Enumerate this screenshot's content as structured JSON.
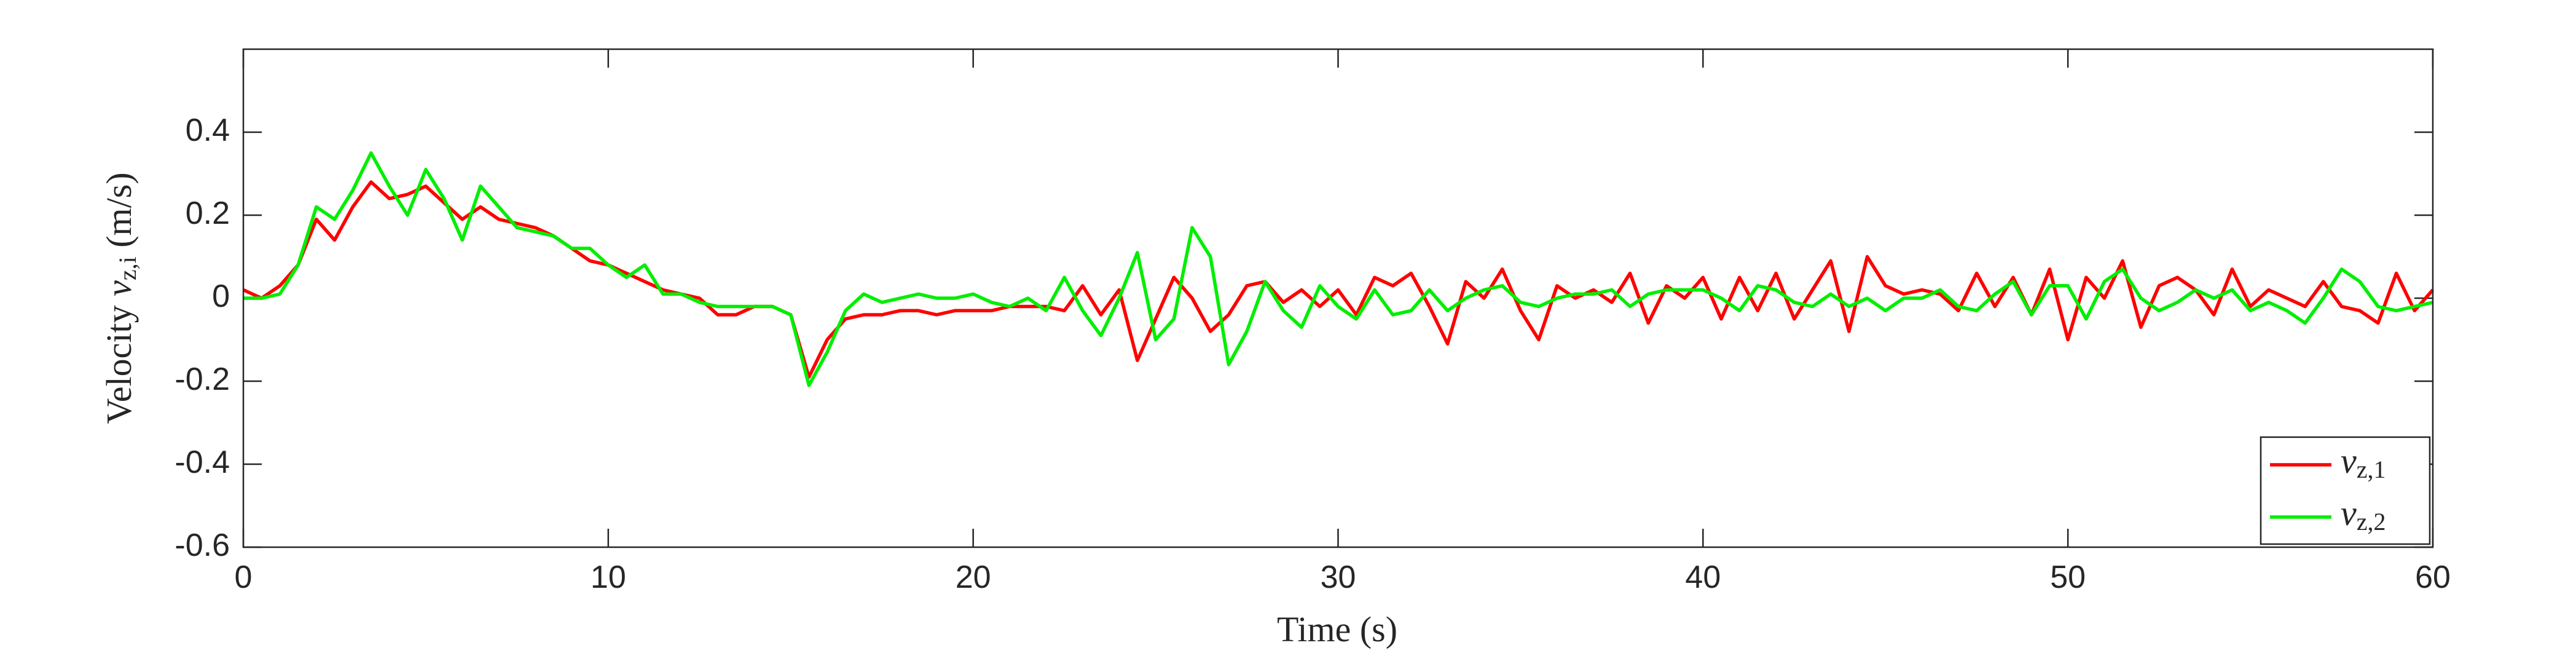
{
  "chart_data": {
    "type": "line",
    "xlabel": "Time (s)",
    "ylabel": "Velocity v_{z,i} (m/s)",
    "xlim": [
      0,
      60
    ],
    "xticks": [
      0,
      10,
      20,
      30,
      40,
      50,
      60
    ],
    "ylim": [
      -0.6,
      0.6
    ],
    "yticks": [
      -0.6,
      -0.4,
      -0.2,
      0,
      0.2,
      0.4
    ],
    "grid": false,
    "legend": "lower right",
    "x": [
      0,
      0.5,
      1,
      1.5,
      2,
      2.5,
      3,
      3.5,
      4,
      4.5,
      5,
      5.5,
      6,
      6.5,
      7,
      7.5,
      8,
      8.5,
      9,
      9.5,
      10,
      10.5,
      11,
      11.5,
      12,
      12.5,
      13,
      13.5,
      14,
      14.5,
      15,
      15.5,
      16,
      16.5,
      17,
      17.5,
      18,
      18.5,
      19,
      19.5,
      20,
      20.5,
      21,
      21.5,
      22,
      22.5,
      23,
      23.5,
      24,
      24.5,
      25,
      25.5,
      26,
      26.5,
      27,
      27.5,
      28,
      28.5,
      29,
      29.5,
      30,
      30.5,
      31,
      31.5,
      32,
      32.5,
      33,
      33.5,
      34,
      34.5,
      35,
      35.5,
      36,
      36.5,
      37,
      37.5,
      38,
      38.5,
      39,
      39.5,
      40,
      40.5,
      41,
      41.5,
      42,
      42.5,
      43,
      43.5,
      44,
      44.5,
      45,
      45.5,
      46,
      46.5,
      47,
      47.5,
      48,
      48.5,
      49,
      49.5,
      50,
      50.5,
      51,
      51.5,
      52,
      52.5,
      53,
      53.5,
      54,
      54.5,
      55,
      55.5,
      56,
      56.5,
      57,
      57.5,
      58,
      58.5,
      59,
      59.5,
      60
    ],
    "series": [
      {
        "name": "v_{z,1}",
        "color": "#ff0000",
        "values": [
          0.02,
          0.0,
          0.03,
          0.08,
          0.19,
          0.14,
          0.22,
          0.28,
          0.24,
          0.25,
          0.27,
          0.23,
          0.19,
          0.22,
          0.19,
          0.18,
          0.17,
          0.15,
          0.12,
          0.09,
          0.08,
          0.06,
          0.04,
          0.02,
          0.01,
          0.0,
          -0.04,
          -0.04,
          -0.02,
          -0.02,
          -0.04,
          -0.19,
          -0.1,
          -0.05,
          -0.04,
          -0.04,
          -0.03,
          -0.03,
          -0.04,
          -0.03,
          -0.03,
          -0.03,
          -0.02,
          -0.02,
          -0.02,
          -0.03,
          0.03,
          -0.04,
          0.02,
          -0.15,
          -0.05,
          0.05,
          0.0,
          -0.08,
          -0.04,
          0.03,
          0.04,
          -0.01,
          0.02,
          -0.02,
          0.02,
          -0.04,
          0.05,
          0.03,
          0.06,
          -0.02,
          -0.11,
          0.04,
          0.0,
          0.07,
          -0.03,
          -0.1,
          0.03,
          0.0,
          0.02,
          -0.01,
          0.06,
          -0.06,
          0.03,
          0.0,
          0.05,
          -0.05,
          0.05,
          -0.03,
          0.06,
          -0.05,
          0.02,
          0.09,
          -0.08,
          0.1,
          0.03,
          0.01,
          0.02,
          0.01,
          -0.03,
          0.06,
          -0.02,
          0.05,
          -0.04,
          0.07,
          -0.1,
          0.05,
          0.0,
          0.09,
          -0.07,
          0.03,
          0.05,
          0.02,
          -0.04,
          0.07,
          -0.02,
          0.02,
          0.0,
          -0.02,
          0.04,
          -0.02,
          -0.03,
          -0.06,
          0.06,
          -0.03,
          0.02
        ]
      },
      {
        "name": "v_{z,2}",
        "color": "#00ee00",
        "values": [
          0.0,
          0.0,
          0.01,
          0.08,
          0.22,
          0.19,
          0.26,
          0.35,
          0.27,
          0.2,
          0.31,
          0.24,
          0.14,
          0.27,
          0.22,
          0.17,
          0.16,
          0.15,
          0.12,
          0.12,
          0.08,
          0.05,
          0.08,
          0.01,
          0.01,
          -0.01,
          -0.02,
          -0.02,
          -0.02,
          -0.02,
          -0.04,
          -0.21,
          -0.13,
          -0.03,
          0.01,
          -0.01,
          0.0,
          0.01,
          0.0,
          0.0,
          0.01,
          -0.01,
          -0.02,
          0.0,
          -0.03,
          0.05,
          -0.03,
          -0.09,
          0.0,
          0.11,
          -0.1,
          -0.05,
          0.17,
          0.1,
          -0.16,
          -0.08,
          0.04,
          -0.03,
          -0.07,
          0.03,
          -0.02,
          -0.05,
          0.02,
          -0.04,
          -0.03,
          0.02,
          -0.03,
          0.0,
          0.02,
          0.03,
          -0.01,
          -0.02,
          0.0,
          0.01,
          0.01,
          0.02,
          -0.02,
          0.01,
          0.02,
          0.02,
          0.02,
          0.0,
          -0.03,
          0.03,
          0.02,
          -0.01,
          -0.02,
          0.01,
          -0.02,
          0.0,
          -0.03,
          0.0,
          0.0,
          0.02,
          -0.02,
          -0.03,
          0.01,
          0.04,
          -0.04,
          0.03,
          0.03,
          -0.05,
          0.04,
          0.07,
          0.0,
          -0.03,
          -0.01,
          0.02,
          0.0,
          0.02,
          -0.03,
          -0.01,
          -0.03,
          -0.06,
          0.0,
          0.07,
          0.04,
          -0.02,
          -0.03,
          -0.02,
          -0.01
        ]
      }
    ]
  }
}
